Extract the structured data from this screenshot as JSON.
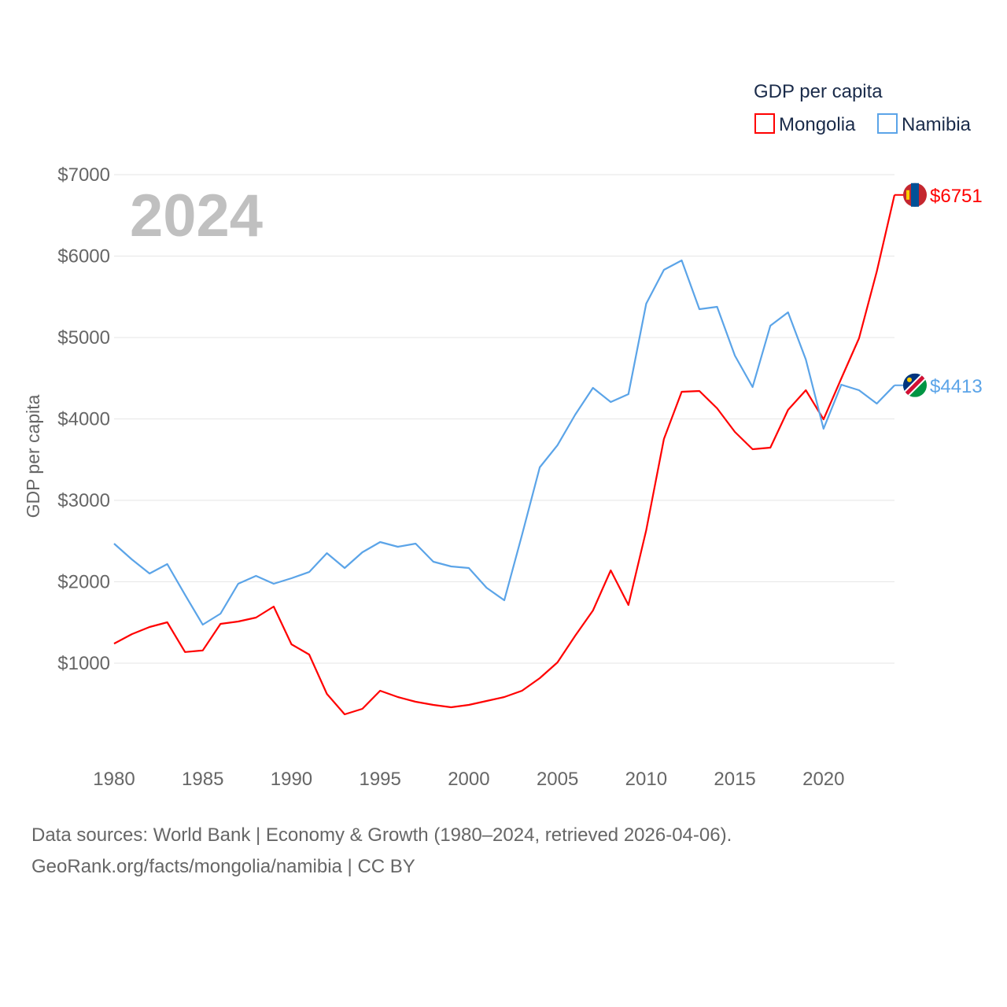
{
  "chart_data": {
    "type": "line",
    "title": "GDP per capita",
    "ylabel": "GDP per capita",
    "xlabel": "",
    "watermark_year": "2024",
    "ylim": [
      0,
      7000
    ],
    "xlim": [
      1980,
      2024
    ],
    "yticks": [
      1000,
      2000,
      3000,
      4000,
      5000,
      6000,
      7000
    ],
    "ytick_labels": [
      "$1000",
      "$2000",
      "$3000",
      "$4000",
      "$5000",
      "$6000",
      "$7000"
    ],
    "xticks": [
      1980,
      1985,
      1990,
      1995,
      2000,
      2005,
      2010,
      2015,
      2020
    ],
    "xtick_labels": [
      "1980",
      "1985",
      "1990",
      "1995",
      "2000",
      "2005",
      "2010",
      "2015",
      "2020"
    ],
    "grid": true,
    "legend_position": "top-right",
    "x": [
      1980,
      1981,
      1982,
      1983,
      1984,
      1985,
      1986,
      1987,
      1988,
      1989,
      1990,
      1991,
      1992,
      1993,
      1994,
      1995,
      1996,
      1997,
      1998,
      1999,
      2000,
      2001,
      2002,
      2003,
      2004,
      2005,
      2006,
      2007,
      2008,
      2009,
      2010,
      2011,
      2012,
      2013,
      2014,
      2015,
      2016,
      2017,
      2018,
      2019,
      2020,
      2021,
      2022,
      2023,
      2024
    ],
    "series": [
      {
        "name": "Mongolia",
        "color": "#ff0000",
        "end_label": "$6751",
        "flag": "mongolia-flag",
        "values": [
          1241,
          1357,
          1444,
          1502,
          1137,
          1157,
          1483,
          1512,
          1560,
          1696,
          1232,
          1106,
          623,
          372,
          440,
          662,
          585,
          527,
          488,
          459,
          488,
          536,
          585,
          662,
          816,
          1010,
          1338,
          1647,
          2140,
          1715,
          2633,
          3754,
          4333,
          4343,
          4130,
          3841,
          3628,
          3647,
          4111,
          4353,
          3995,
          4498,
          4990,
          5812,
          6751
        ]
      },
      {
        "name": "Namibia",
        "color": "#5ba4e8",
        "end_label": "$4413",
        "flag": "namibia-flag",
        "values": [
          2469,
          2275,
          2101,
          2217,
          1840,
          1473,
          1609,
          1976,
          2072,
          1976,
          2043,
          2120,
          2352,
          2169,
          2362,
          2488,
          2430,
          2469,
          2246,
          2188,
          2169,
          1927,
          1773,
          2575,
          3406,
          3677,
          4053,
          4382,
          4208,
          4304,
          5415,
          5831,
          5947,
          5348,
          5377,
          4778,
          4391,
          5145,
          5309,
          4729,
          3879,
          4420,
          4353,
          4188,
          4413
        ]
      }
    ]
  },
  "footer": {
    "line1": "Data sources: World Bank | Economy & Growth (1980–2024, retrieved 2026-04-06).",
    "line2": "GeoRank.org/facts/mongolia/namibia | CC BY"
  }
}
